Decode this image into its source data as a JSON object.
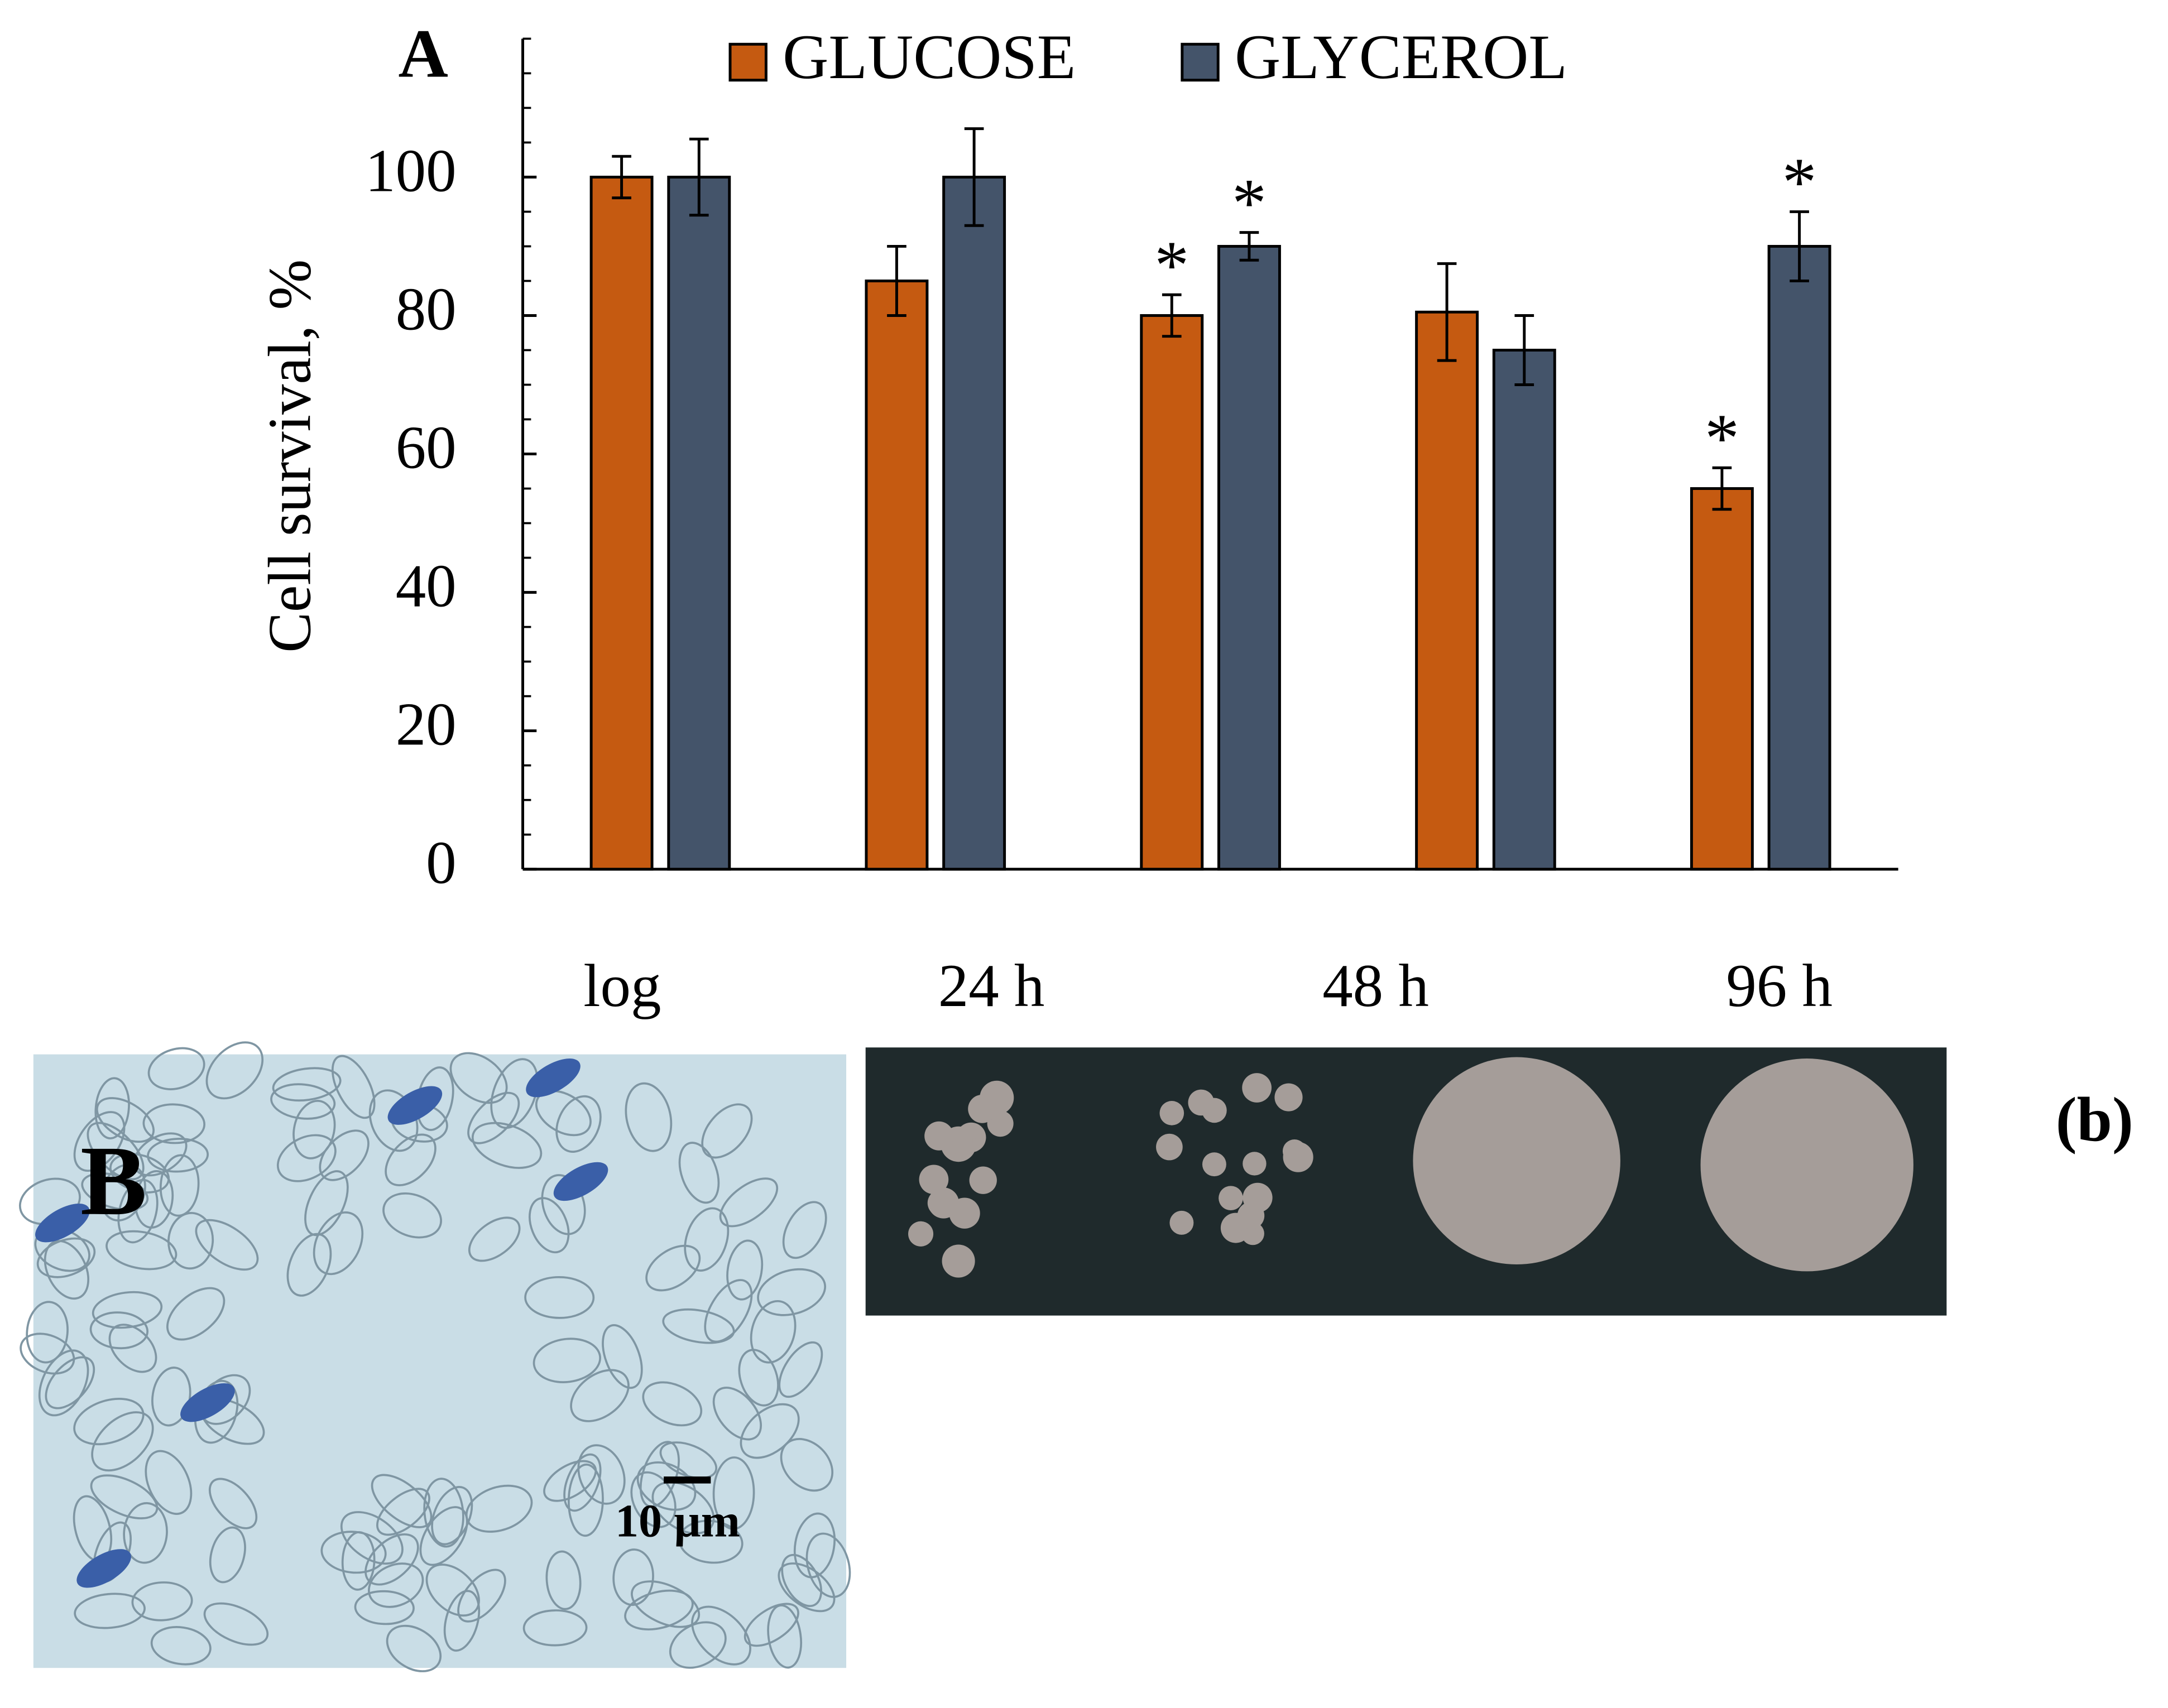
{
  "chart_data": {
    "type": "bar",
    "title": "A",
    "ylabel": "Cell survival, %",
    "categories": [
      "log",
      "24 h",
      "48 h",
      null,
      "96 h"
    ],
    "series": [
      {
        "name": "GLUCOSE",
        "color": "#c55a11",
        "values": [
          100,
          85,
          80,
          80.5,
          55
        ],
        "errors": [
          3,
          5,
          3,
          7,
          3
        ],
        "markers": [
          null,
          null,
          "*",
          null,
          "*"
        ]
      },
      {
        "name": "GLYCEROL",
        "color": "#44546a",
        "values": [
          100,
          100,
          90,
          75,
          90
        ],
        "errors": [
          5.5,
          7,
          2,
          5,
          5
        ],
        "markers": [
          null,
          null,
          "*",
          null,
          "*"
        ]
      }
    ],
    "ylim": [
      0,
      120
    ],
    "yticks": [
      0,
      20,
      40,
      60,
      80,
      100
    ],
    "minor_tick_step": 5,
    "legend": "top"
  },
  "panels": {
    "micrograph_label": "B",
    "scale_bar": "10 µm",
    "plate_label": "(b)"
  }
}
